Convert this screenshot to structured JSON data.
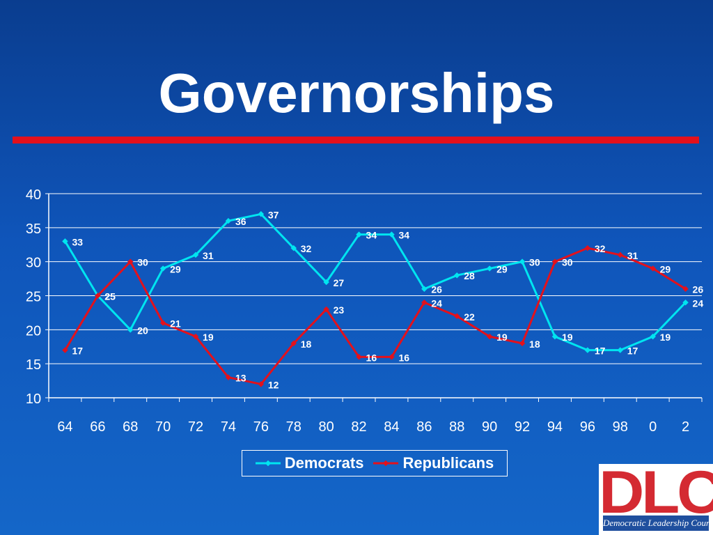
{
  "slide": {
    "title": "Governorships",
    "accent_color": "#e3111c",
    "background_color": "#0f55ba"
  },
  "logo": {
    "letters": "DLC",
    "subtitle": "Democratic Leadership Council",
    "letter_color": "#d42a32",
    "bar_color": "#1f4f9e"
  },
  "chart_data": {
    "type": "line",
    "categories": [
      "64",
      "66",
      "68",
      "70",
      "72",
      "74",
      "76",
      "78",
      "80",
      "82",
      "84",
      "86",
      "88",
      "90",
      "92",
      "94",
      "96",
      "98",
      "0",
      "2"
    ],
    "ylim": [
      10,
      40
    ],
    "yticks": [
      10,
      15,
      20,
      25,
      30,
      35,
      40
    ],
    "grid": true,
    "legend_position": "bottom",
    "series": [
      {
        "name": "Democrats",
        "color": "#00e5f0",
        "values": [
          33,
          25,
          20,
          29,
          31,
          36,
          37,
          32,
          27,
          34,
          34,
          26,
          28,
          29,
          30,
          19,
          17,
          17,
          19,
          24
        ]
      },
      {
        "name": "Republicans",
        "color": "#e3111c",
        "values": [
          17,
          25,
          30,
          21,
          19,
          13,
          12,
          18,
          23,
          16,
          16,
          24,
          22,
          19,
          18,
          30,
          32,
          31,
          29,
          26
        ]
      }
    ]
  }
}
